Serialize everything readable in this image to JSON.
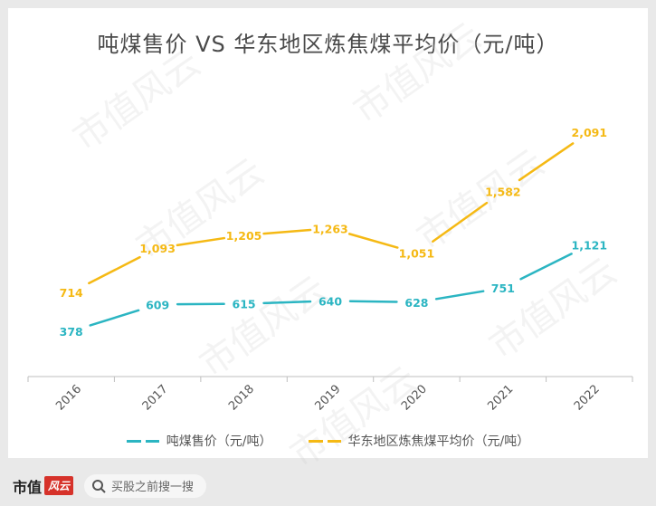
{
  "chart_data": {
    "type": "line",
    "title": "吨煤售价 VS 华东地区炼焦煤平均价（元/吨）",
    "categories": [
      "2016",
      "2017",
      "2018",
      "2019",
      "2020",
      "2021",
      "2022"
    ],
    "series": [
      {
        "name": "吨煤售价（元/吨）",
        "color": "#2bb5c2",
        "values": [
          378,
          609,
          615,
          640,
          628,
          751,
          1121
        ],
        "labels": [
          "378",
          "609",
          "615",
          "640",
          "628",
          "751",
          "1,121"
        ]
      },
      {
        "name": "华东地区炼焦煤平均价（元/吨）",
        "color": "#f5b914",
        "values": [
          714,
          1093,
          1205,
          1263,
          1051,
          1582,
          2091
        ],
        "labels": [
          "714",
          "1,093",
          "1,205",
          "1,263",
          "1,051",
          "1,582",
          "2,091"
        ]
      }
    ],
    "legend_position": "bottom",
    "grid": false
  },
  "footer": {
    "brand_text": "市值",
    "brand_badge": "风云",
    "search_text": "买股之前搜一搜"
  },
  "watermark_text": "市值风云"
}
